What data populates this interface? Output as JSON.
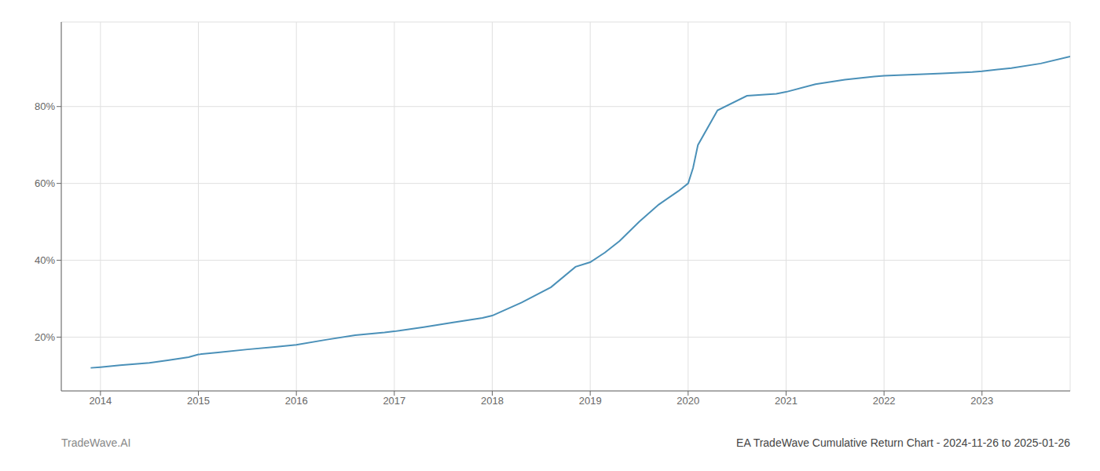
{
  "chart_data": {
    "type": "line",
    "title": "EA TradeWave Cumulative Return Chart - 2024-11-26 to 2025-01-26",
    "annotations": [
      "TradeWave.AI"
    ],
    "color": "#4a90b8",
    "grid": true,
    "x": [
      2013.9,
      2014.0,
      2014.2,
      2014.5,
      2014.7,
      2014.9,
      2015.0,
      2015.2,
      2015.5,
      2015.8,
      2016.0,
      2016.3,
      2016.6,
      2016.9,
      2017.0,
      2017.3,
      2017.6,
      2017.9,
      2018.0,
      2018.3,
      2018.6,
      2018.85,
      2019.0,
      2019.15,
      2019.3,
      2019.5,
      2019.7,
      2019.9,
      2020.0,
      2020.05,
      2020.1,
      2020.3,
      2020.6,
      2020.9,
      2021.0,
      2021.3,
      2021.6,
      2021.9,
      2022.0,
      2022.3,
      2022.6,
      2022.9,
      2023.0,
      2023.3,
      2023.6,
      2023.9
    ],
    "values": [
      0.12,
      0.122,
      0.127,
      0.133,
      0.14,
      0.148,
      0.155,
      0.16,
      0.168,
      0.175,
      0.18,
      0.193,
      0.205,
      0.212,
      0.215,
      0.226,
      0.238,
      0.25,
      0.256,
      0.29,
      0.33,
      0.383,
      0.395,
      0.42,
      0.45,
      0.5,
      0.545,
      0.58,
      0.6,
      0.64,
      0.7,
      0.79,
      0.828,
      0.833,
      0.838,
      0.858,
      0.87,
      0.878,
      0.88,
      0.883,
      0.886,
      0.89,
      0.892,
      0.9,
      0.912,
      0.93
    ],
    "xlim": [
      2013.6,
      2023.9
    ],
    "xticks": [
      2014,
      2015,
      2016,
      2017,
      2018,
      2019,
      2020,
      2021,
      2022,
      2023
    ],
    "ylim": [
      0.06,
      1.02
    ],
    "yticks": [
      {
        "value": 0.2,
        "label": "20%"
      },
      {
        "value": 0.4,
        "label": "40%"
      },
      {
        "value": 0.6,
        "label": "60%"
      },
      {
        "value": 0.8,
        "label": "80%"
      }
    ]
  }
}
